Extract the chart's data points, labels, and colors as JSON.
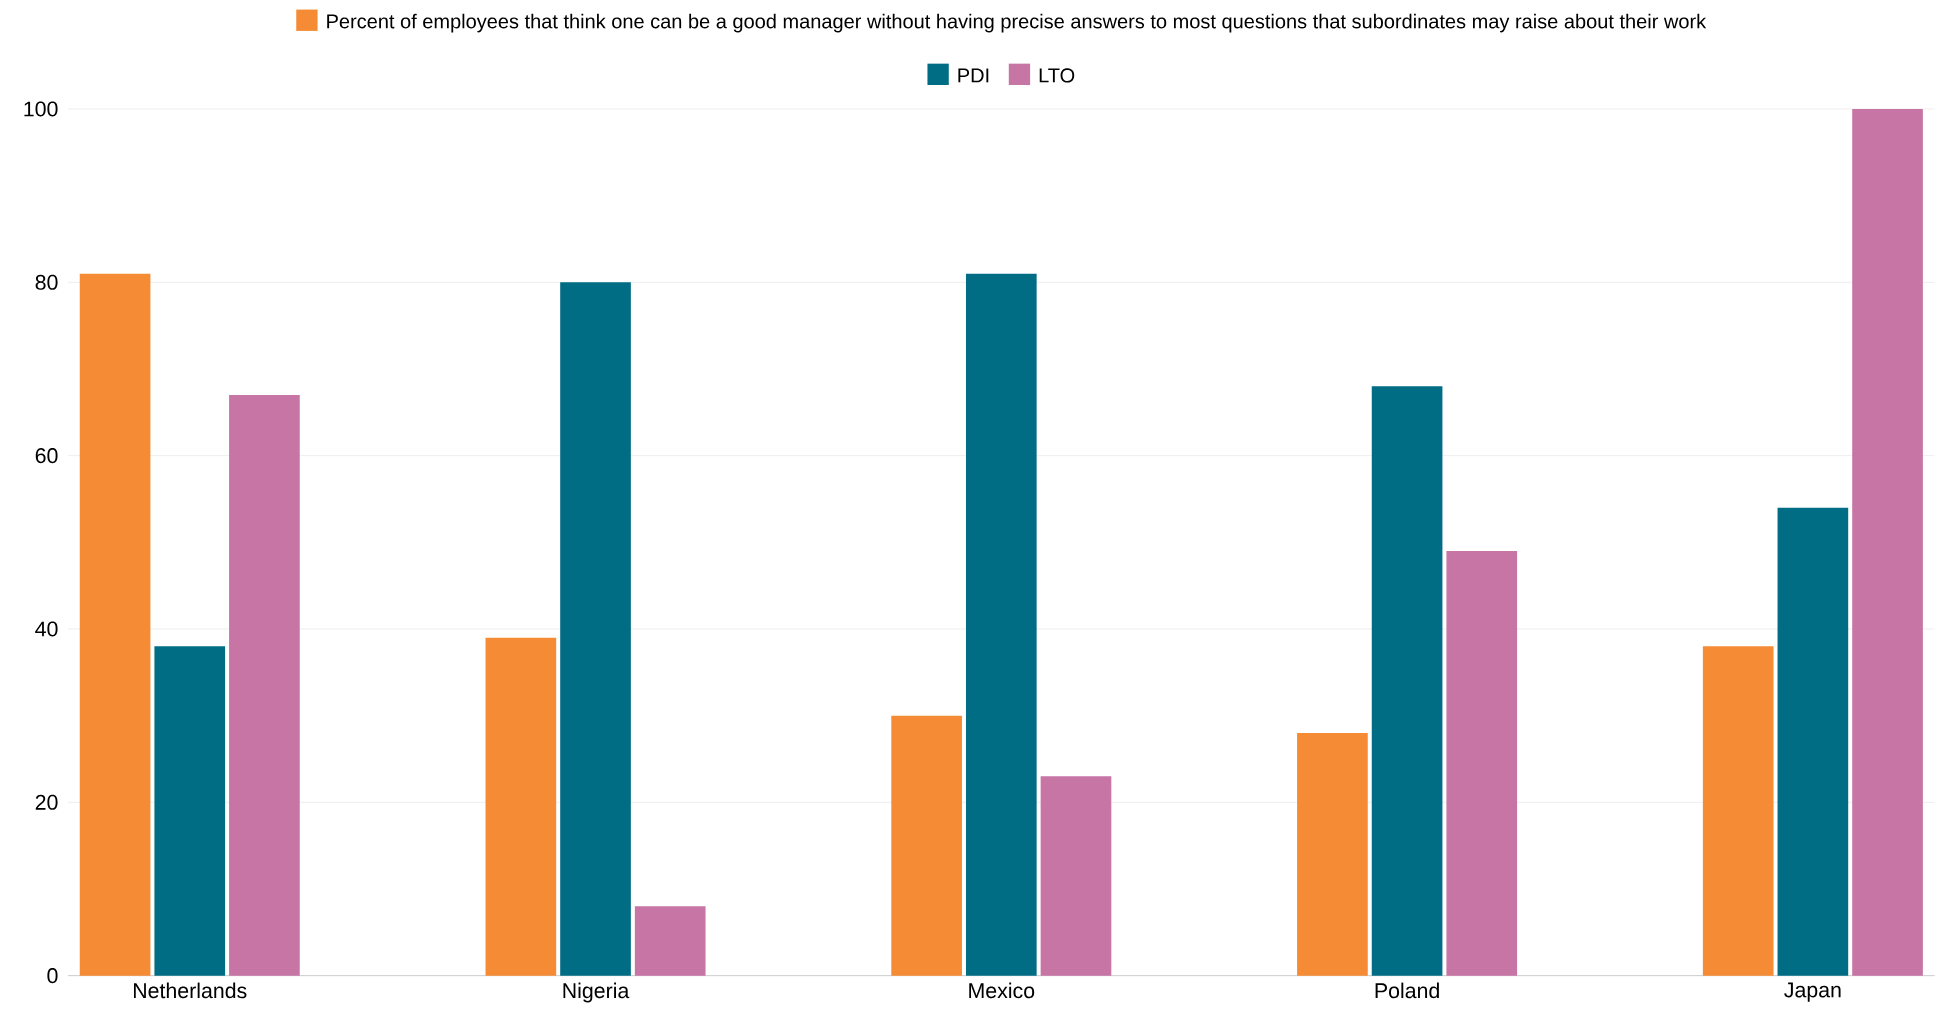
{
  "chart_data": {
    "type": "bar",
    "categories": [
      "Netherlands",
      "Nigeria",
      "Mexico",
      "Poland",
      "Japan"
    ],
    "series": [
      {
        "name": "Percent of employees that think one can be a good manager without having precise answers to most questions that subordinates may raise about their work",
        "color": "#f58b35",
        "values": [
          81,
          39,
          30,
          28,
          38
        ]
      },
      {
        "name": "PDI",
        "color": "#006d85",
        "values": [
          38,
          80,
          81,
          68,
          54
        ]
      },
      {
        "name": "LTO",
        "color": "#c675a5",
        "values": [
          67,
          8,
          23,
          49,
          100
        ]
      }
    ],
    "ylim": [
      0,
      100
    ],
    "yticks": [
      0,
      20,
      40,
      60,
      80,
      100
    ],
    "grid": "y",
    "legend": "top"
  }
}
